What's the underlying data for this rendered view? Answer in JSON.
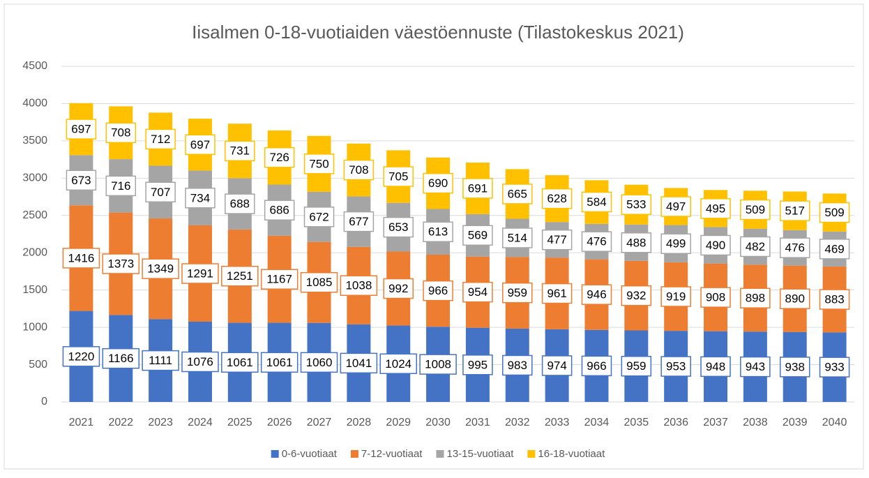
{
  "chart_data": {
    "type": "stacked_bar",
    "title": "Iisalmen 0-18-vuotiaiden väestöennuste (Tilastokeskus 2021)",
    "categories": [
      "2021",
      "2022",
      "2023",
      "2024",
      "2025",
      "2026",
      "2027",
      "2028",
      "2029",
      "2030",
      "2031",
      "2032",
      "2033",
      "2034",
      "2035",
      "2036",
      "2037",
      "2038",
      "2039",
      "2040"
    ],
    "series": [
      {
        "name": "0-6-vuotiaat",
        "color": "#4472c4",
        "values": [
          1220,
          1166,
          1111,
          1076,
          1061,
          1061,
          1060,
          1041,
          1024,
          1008,
          995,
          983,
          974,
          966,
          959,
          953,
          948,
          943,
          938,
          933
        ]
      },
      {
        "name": "7-12-vuotiaat",
        "color": "#ed7d31",
        "values": [
          1416,
          1373,
          1349,
          1291,
          1251,
          1167,
          1085,
          1038,
          992,
          966,
          954,
          959,
          961,
          946,
          932,
          919,
          908,
          898,
          890,
          883
        ]
      },
      {
        "name": "13-15-vuotiaat",
        "color": "#a5a5a5",
        "values": [
          673,
          716,
          707,
          734,
          688,
          686,
          672,
          677,
          653,
          613,
          569,
          514,
          477,
          476,
          488,
          499,
          490,
          482,
          476,
          469
        ]
      },
      {
        "name": "16-18-vuotiaat",
        "color": "#ffc000",
        "values": [
          697,
          708,
          712,
          697,
          731,
          726,
          750,
          708,
          705,
          690,
          691,
          665,
          628,
          584,
          533,
          497,
          495,
          509,
          517,
          509
        ]
      }
    ],
    "ylim": [
      0,
      4500
    ],
    "yticks": [
      0,
      500,
      1000,
      1500,
      2000,
      2500,
      3000,
      3500,
      4000,
      4500
    ],
    "grid": true,
    "legend": "bottom"
  }
}
